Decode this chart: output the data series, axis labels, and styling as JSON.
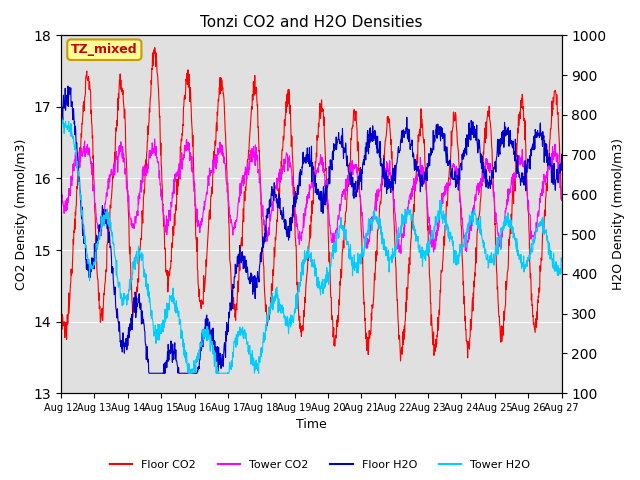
{
  "title": "Tonzi CO2 and H2O Densities",
  "xlabel": "Time",
  "ylabel_left": "CO2 Density (mmol/m3)",
  "ylabel_right": "H2O Density (mmol/m3)",
  "ylim_left": [
    13.0,
    18.0
  ],
  "ylim_right": [
    100,
    1000
  ],
  "annotation_text": "TZ_mixed",
  "annotation_color": "#cc0000",
  "annotation_bg": "#ffff99",
  "annotation_border": "#cc9900",
  "x_tick_labels": [
    "Aug 12",
    "Aug 13",
    "Aug 14",
    "Aug 15",
    "Aug 16",
    "Aug 17",
    "Aug 18",
    "Aug 19",
    "Aug 20",
    "Aug 21",
    "Aug 22",
    "Aug 23",
    "Aug 24",
    "Aug 25",
    "Aug 26",
    "Aug 27"
  ],
  "colors": {
    "floor_co2": "#ff0000",
    "tower_co2": "#ff00ff",
    "floor_h2o": "#0000cc",
    "tower_h2o": "#00ccff"
  },
  "legend_labels": [
    "Floor CO2",
    "Tower CO2",
    "Floor H2O",
    "Tower H2O"
  ],
  "bg_color": "#e0e0e0",
  "grid_color": "#ffffff",
  "figsize": [
    6.4,
    4.8
  ],
  "dpi": 100
}
